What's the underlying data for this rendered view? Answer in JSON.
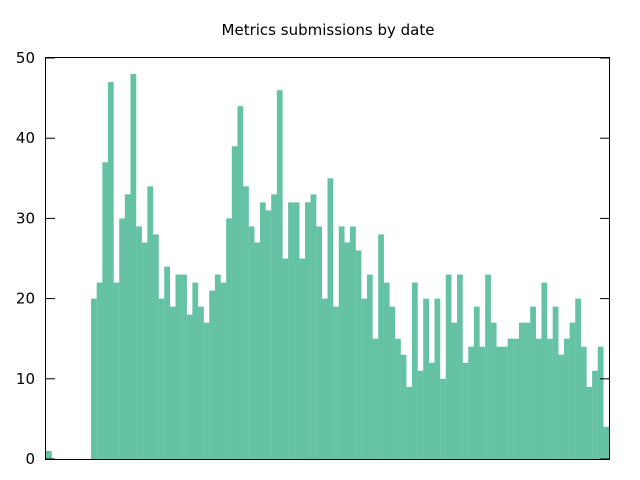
{
  "chart_data": {
    "type": "bar",
    "title": "Metrics submissions by date",
    "xlabel": "",
    "ylabel": "",
    "ylim": [
      0,
      50
    ],
    "yticks": [
      0,
      10,
      20,
      30,
      40,
      50
    ],
    "grid": false,
    "bar_color": "#66c2a5",
    "values": [
      1,
      0,
      0,
      0,
      0,
      0,
      0,
      0,
      20,
      22,
      37,
      47,
      22,
      30,
      33,
      48,
      29,
      27,
      34,
      28,
      20,
      24,
      19,
      23,
      23,
      18,
      22,
      19,
      17,
      21,
      23,
      22,
      30,
      39,
      44,
      34,
      29,
      27,
      32,
      31,
      33,
      46,
      25,
      32,
      32,
      25,
      32,
      33,
      29,
      20,
      35,
      19,
      29,
      27,
      29,
      26,
      20,
      23,
      15,
      28,
      22,
      19,
      15,
      13,
      9,
      22,
      11,
      20,
      12,
      20,
      10,
      23,
      17,
      23,
      12,
      14,
      19,
      14,
      23,
      17,
      14,
      14,
      15,
      15,
      17,
      17,
      19,
      15,
      22,
      15,
      19,
      13,
      15,
      17,
      20,
      14,
      9,
      11,
      14,
      4
    ]
  }
}
